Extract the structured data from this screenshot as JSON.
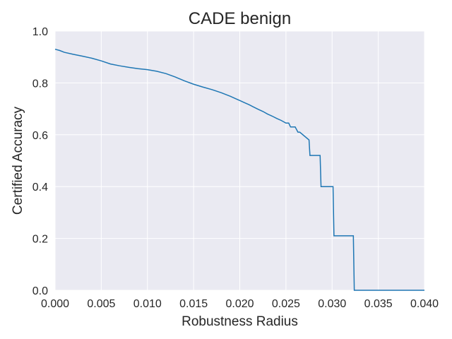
{
  "chart_data": {
    "type": "line",
    "title": "CADE benign",
    "xlabel": "Robustness Radius",
    "ylabel": "Certified Accuracy",
    "xlim": [
      0.0,
      0.04
    ],
    "ylim": [
      0.0,
      1.0
    ],
    "xticks": [
      "0.000",
      "0.005",
      "0.010",
      "0.015",
      "0.020",
      "0.025",
      "0.030",
      "0.035",
      "0.040"
    ],
    "yticks": [
      "0.0",
      "0.2",
      "0.4",
      "0.6",
      "0.8",
      "1.0"
    ],
    "grid": true,
    "line_color": "#1f77b4",
    "background_color": "#eaeaf2",
    "series": [
      {
        "x": [
          0.0,
          0.0005,
          0.001,
          0.002,
          0.003,
          0.004,
          0.005,
          0.006,
          0.007,
          0.008,
          0.009,
          0.01,
          0.011,
          0.012,
          0.013,
          0.014,
          0.015,
          0.016,
          0.017,
          0.018,
          0.019,
          0.0195,
          0.02,
          0.0205,
          0.021,
          0.0215,
          0.022,
          0.0225,
          0.023,
          0.0235,
          0.024,
          0.0245,
          0.025,
          0.0253,
          0.0255,
          0.026,
          0.0263,
          0.0265,
          0.0275,
          0.0276,
          0.0287,
          0.0288,
          0.0301,
          0.0302,
          0.0323,
          0.0324,
          0.04
        ],
        "y": [
          0.93,
          0.925,
          0.918,
          0.91,
          0.903,
          0.895,
          0.885,
          0.873,
          0.866,
          0.86,
          0.855,
          0.851,
          0.845,
          0.836,
          0.823,
          0.808,
          0.795,
          0.784,
          0.774,
          0.762,
          0.748,
          0.74,
          0.732,
          0.724,
          0.716,
          0.707,
          0.698,
          0.69,
          0.68,
          0.672,
          0.663,
          0.655,
          0.645,
          0.645,
          0.63,
          0.63,
          0.61,
          0.61,
          0.58,
          0.52,
          0.52,
          0.4,
          0.4,
          0.21,
          0.21,
          0.0,
          0.0
        ]
      }
    ]
  }
}
